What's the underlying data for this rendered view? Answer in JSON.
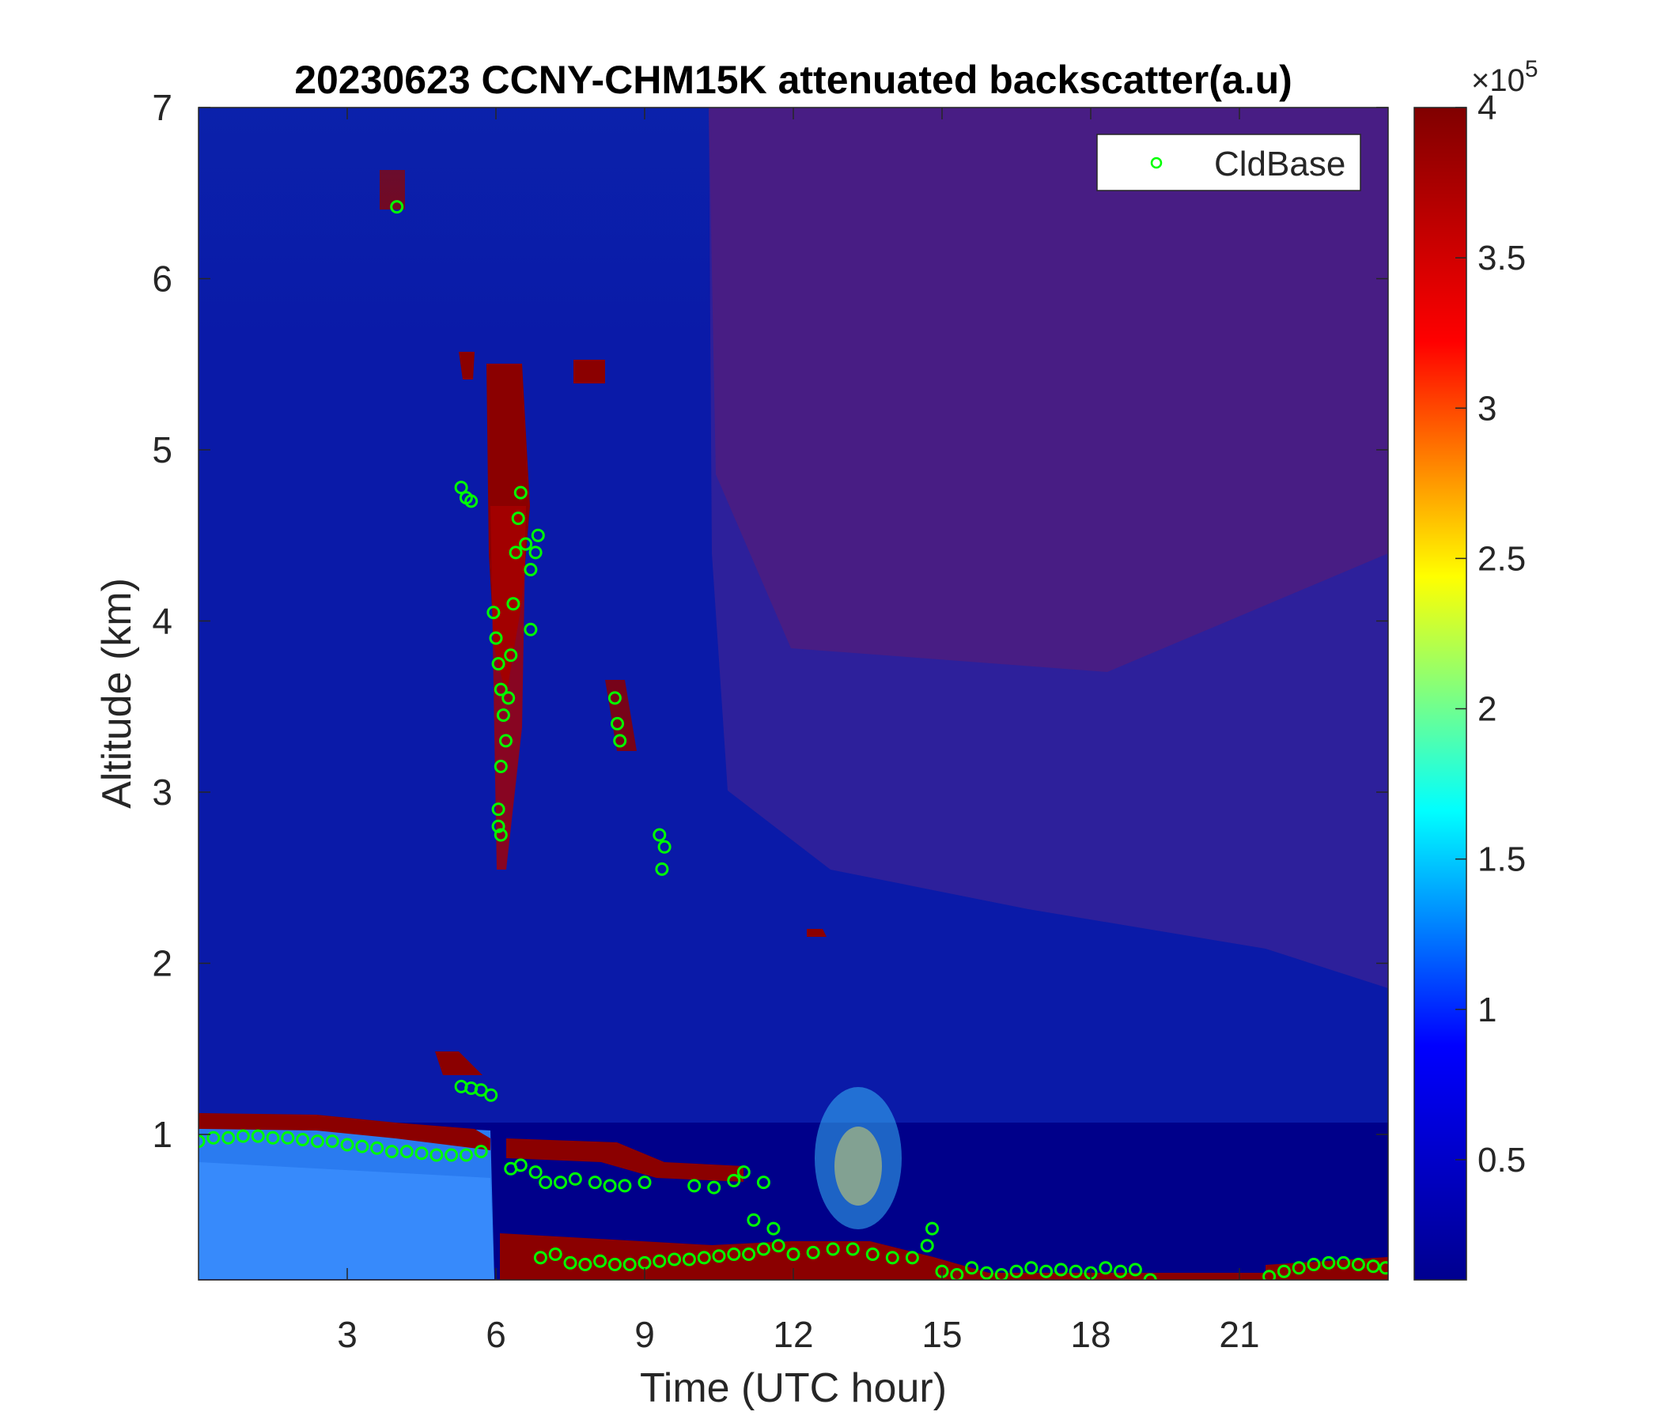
{
  "chart_data": {
    "type": "heatmap",
    "title": "20230623 CCNY-CHM15K attenuated backscatter(a.u)",
    "xlabel": "Time (UTC hour)",
    "ylabel": "Altitude (km)",
    "xlim": [
      0,
      24
    ],
    "ylim": [
      0.15,
      7
    ],
    "xticks": [
      3,
      6,
      9,
      12,
      15,
      18,
      21
    ],
    "yticks": [
      1,
      2,
      3,
      4,
      5,
      6,
      7
    ],
    "colorbar": {
      "range": [
        0.1,
        4
      ],
      "ticks": [
        0.5,
        1,
        1.5,
        2,
        2.5,
        3,
        3.5,
        4
      ],
      "exponent_base": "×10",
      "exponent_power": "5",
      "colormap": "jet",
      "colormap_stops": [
        "#00008f",
        "#0000ff",
        "#00ffff",
        "#ffff00",
        "#ff0000",
        "#800000"
      ]
    },
    "legend": {
      "entries": [
        "CldBase"
      ],
      "location": "top-right",
      "marker": "circle",
      "color": "#00ff00"
    },
    "series": [
      {
        "name": "CldBase",
        "type": "scatter",
        "points": [
          [
            0.0,
            0.96
          ],
          [
            0.3,
            0.98
          ],
          [
            0.6,
            0.98
          ],
          [
            0.9,
            0.99
          ],
          [
            1.2,
            0.99
          ],
          [
            1.5,
            0.98
          ],
          [
            1.8,
            0.98
          ],
          [
            2.1,
            0.97
          ],
          [
            2.4,
            0.96
          ],
          [
            2.7,
            0.96
          ],
          [
            3.0,
            0.94
          ],
          [
            3.3,
            0.93
          ],
          [
            3.6,
            0.92
          ],
          [
            3.9,
            0.9
          ],
          [
            4.2,
            0.9
          ],
          [
            4.5,
            0.89
          ],
          [
            4.8,
            0.88
          ],
          [
            5.1,
            0.88
          ],
          [
            5.4,
            0.88
          ],
          [
            5.7,
            0.9
          ],
          [
            4.0,
            6.42
          ],
          [
            5.3,
            1.28
          ],
          [
            5.5,
            1.27
          ],
          [
            5.7,
            1.26
          ],
          [
            5.9,
            1.23
          ],
          [
            5.3,
            4.78
          ],
          [
            5.4,
            4.72
          ],
          [
            5.5,
            4.7
          ],
          [
            5.95,
            4.05
          ],
          [
            6.0,
            3.9
          ],
          [
            6.05,
            3.75
          ],
          [
            6.1,
            3.6
          ],
          [
            6.15,
            3.45
          ],
          [
            6.2,
            3.3
          ],
          [
            6.1,
            3.15
          ],
          [
            6.05,
            2.9
          ],
          [
            6.05,
            2.8
          ],
          [
            6.1,
            2.75
          ],
          [
            6.25,
            3.55
          ],
          [
            6.3,
            3.8
          ],
          [
            6.35,
            4.1
          ],
          [
            6.4,
            4.4
          ],
          [
            6.45,
            4.6
          ],
          [
            6.5,
            4.75
          ],
          [
            6.6,
            4.45
          ],
          [
            6.7,
            4.3
          ],
          [
            6.8,
            4.4
          ],
          [
            6.85,
            4.5
          ],
          [
            6.7,
            3.95
          ],
          [
            6.3,
            0.8
          ],
          [
            6.5,
            0.82
          ],
          [
            6.8,
            0.78
          ],
          [
            7.0,
            0.72
          ],
          [
            7.3,
            0.72
          ],
          [
            7.6,
            0.74
          ],
          [
            8.0,
            0.72
          ],
          [
            8.3,
            0.7
          ],
          [
            8.6,
            0.7
          ],
          [
            9.0,
            0.72
          ],
          [
            10.0,
            0.7
          ],
          [
            10.4,
            0.69
          ],
          [
            10.8,
            0.73
          ],
          [
            11.0,
            0.78
          ],
          [
            11.4,
            0.72
          ],
          [
            8.4,
            3.55
          ],
          [
            8.45,
            3.4
          ],
          [
            8.5,
            3.3
          ],
          [
            9.3,
            2.75
          ],
          [
            9.4,
            2.68
          ],
          [
            9.35,
            2.55
          ],
          [
            6.9,
            0.28
          ],
          [
            7.2,
            0.3
          ],
          [
            7.5,
            0.25
          ],
          [
            7.8,
            0.24
          ],
          [
            8.1,
            0.26
          ],
          [
            8.4,
            0.24
          ],
          [
            8.7,
            0.24
          ],
          [
            9.0,
            0.25
          ],
          [
            9.3,
            0.26
          ],
          [
            9.6,
            0.27
          ],
          [
            9.9,
            0.27
          ],
          [
            10.2,
            0.28
          ],
          [
            10.5,
            0.29
          ],
          [
            10.8,
            0.3
          ],
          [
            11.1,
            0.3
          ],
          [
            11.4,
            0.33
          ],
          [
            11.7,
            0.35
          ],
          [
            11.2,
            0.5
          ],
          [
            11.6,
            0.45
          ],
          [
            12.0,
            0.3
          ],
          [
            12.4,
            0.31
          ],
          [
            12.8,
            0.33
          ],
          [
            13.2,
            0.33
          ],
          [
            13.6,
            0.3
          ],
          [
            14.0,
            0.28
          ],
          [
            14.4,
            0.28
          ],
          [
            14.7,
            0.35
          ],
          [
            14.8,
            0.45
          ],
          [
            15.0,
            0.2
          ],
          [
            15.3,
            0.18
          ],
          [
            15.6,
            0.22
          ],
          [
            15.9,
            0.19
          ],
          [
            16.2,
            0.18
          ],
          [
            16.5,
            0.2
          ],
          [
            16.8,
            0.22
          ],
          [
            17.1,
            0.2
          ],
          [
            17.4,
            0.21
          ],
          [
            17.7,
            0.2
          ],
          [
            18.0,
            0.19
          ],
          [
            18.3,
            0.22
          ],
          [
            18.6,
            0.2
          ],
          [
            18.9,
            0.21
          ],
          [
            19.2,
            0.15
          ],
          [
            21.6,
            0.17
          ],
          [
            21.9,
            0.2
          ],
          [
            22.2,
            0.22
          ],
          [
            22.5,
            0.24
          ],
          [
            22.8,
            0.25
          ],
          [
            23.1,
            0.25
          ],
          [
            23.4,
            0.24
          ],
          [
            23.7,
            0.23
          ],
          [
            23.95,
            0.22
          ]
        ]
      }
    ]
  }
}
